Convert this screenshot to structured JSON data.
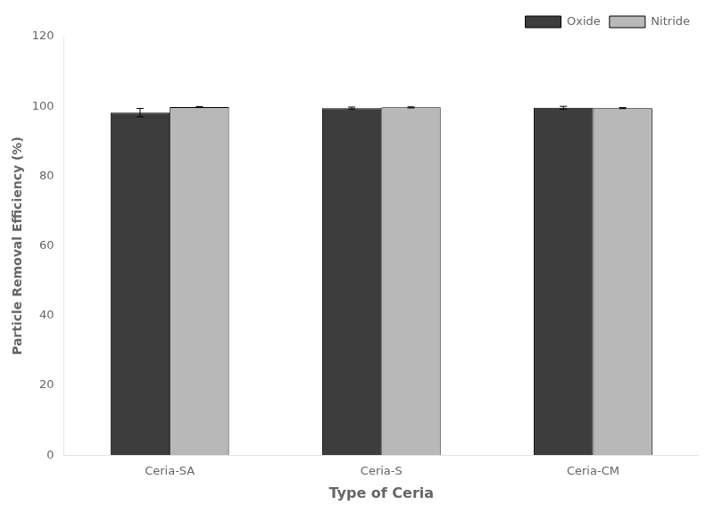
{
  "chart_data": {
    "type": "bar",
    "xlabel": "Type of Ceria",
    "ylabel": "Particle Removal Efficiency (%)",
    "categories": [
      "Ceria-SA",
      "Ceria-S",
      "Ceria-CM"
    ],
    "series": [
      {
        "name": "Oxide",
        "color": "#3d3d3d",
        "values": [
          98.2,
          99.5,
          99.6
        ],
        "errors": [
          1.2,
          0.3,
          0.4
        ]
      },
      {
        "name": "Nitride",
        "color": "#b8b8b8",
        "values": [
          99.8,
          99.7,
          99.5
        ],
        "errors": [
          0.15,
          0.15,
          0.15
        ]
      }
    ],
    "ylim": [
      0,
      120
    ],
    "yticks": [
      0,
      20,
      40,
      60,
      80,
      100,
      120
    ],
    "grid": false,
    "legend": "upper right"
  }
}
